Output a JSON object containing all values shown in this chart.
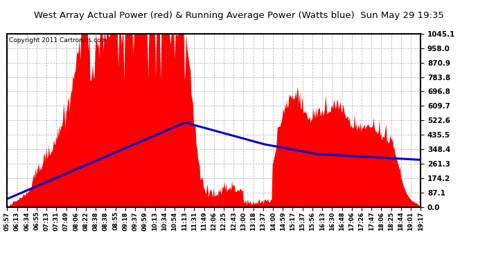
{
  "title": "West Array Actual Power (red) & Running Average Power (Watts blue)  Sun May 29 19:35",
  "copyright": "Copyright 2011 Cartronics.com",
  "yticks": [
    0.0,
    87.1,
    174.2,
    261.3,
    348.4,
    435.5,
    522.6,
    609.7,
    696.8,
    783.8,
    870.9,
    958.0,
    1045.1
  ],
  "ymax": 1045.1,
  "ymin": 0.0,
  "bg_color": "#ffffff",
  "plot_bg_color": "#ffffff",
  "grid_color": "#aaaaaa",
  "red_color": "#ff0000",
  "blue_color": "#0000cc",
  "title_bg": "#c0c0c0",
  "xtick_labels": [
    "05:57",
    "06:13",
    "06:34",
    "06:55",
    "07:13",
    "07:31",
    "07:49",
    "08:06",
    "08:22",
    "08:38",
    "08:38",
    "08:55",
    "09:18",
    "09:37",
    "09:59",
    "10:13",
    "10:34",
    "10:54",
    "11:13",
    "11:31",
    "11:49",
    "12:06",
    "12:25",
    "12:43",
    "13:00",
    "13:18",
    "13:37",
    "14:00",
    "14:59",
    "15:17",
    "15:37",
    "15:56",
    "16:13",
    "16:30",
    "16:48",
    "17:06",
    "17:26",
    "17:47",
    "18:06",
    "18:25",
    "18:44",
    "19:01",
    "19:17"
  ],
  "num_points": 500
}
